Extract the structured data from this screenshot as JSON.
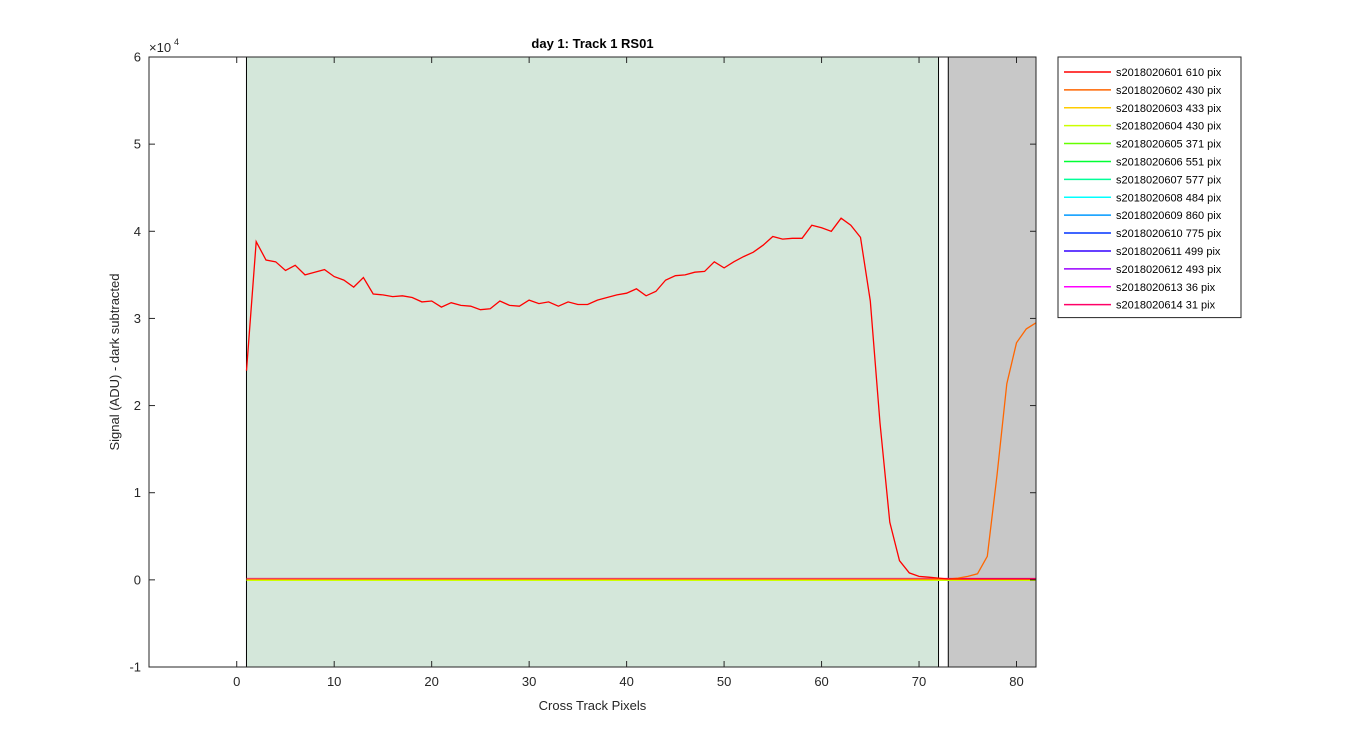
{
  "chart_data": {
    "type": "line",
    "title": "day 1: Track 1  RS01",
    "xlabel": "Cross Track Pixels",
    "ylabel": "Signal (ADU) - dark subtracted",
    "xlim": [
      -9,
      82
    ],
    "ylim": [
      -10000,
      60000
    ],
    "y_exponent_label": "×10",
    "y_exponent": "4",
    "xticks": [
      0,
      10,
      20,
      30,
      40,
      50,
      60,
      70,
      80
    ],
    "xtick_labels": [
      "0",
      "10",
      "20",
      "30",
      "40",
      "50",
      "60",
      "70",
      "80"
    ],
    "yticks": [
      -10000,
      0,
      10000,
      20000,
      30000,
      40000,
      50000,
      60000
    ],
    "ytick_labels": [
      "-1",
      "0",
      "1",
      "2",
      "3",
      "4",
      "5",
      "6"
    ],
    "grid": false,
    "legend_position": "outside-right-top",
    "regions": [
      {
        "x0": 1,
        "x1": 72,
        "color": "#d4e7da"
      },
      {
        "x0": 73,
        "x1": 82,
        "color": "#c8c8c8"
      }
    ],
    "vlines": [
      1,
      72,
      73
    ],
    "series": [
      {
        "name": "s2018020601 610 pix",
        "color": "#ff0000",
        "x": [
          1,
          2,
          3,
          4,
          5,
          6,
          7,
          8,
          9,
          10,
          11,
          12,
          13,
          14,
          15,
          16,
          17,
          18,
          19,
          20,
          21,
          22,
          23,
          24,
          25,
          26,
          27,
          28,
          29,
          30,
          31,
          32,
          33,
          34,
          35,
          36,
          37,
          38,
          39,
          40,
          41,
          42,
          43,
          44,
          45,
          46,
          47,
          48,
          49,
          50,
          51,
          52,
          53,
          54,
          55,
          56,
          57,
          58,
          59,
          60,
          61,
          62,
          63,
          64,
          65,
          66,
          67,
          68,
          69,
          70,
          71,
          72,
          73,
          74,
          75,
          76,
          77,
          78,
          79,
          80,
          81,
          82
        ],
        "y": [
          24000,
          38800,
          36700,
          36500,
          35500,
          36100,
          35000,
          35300,
          35600,
          34800,
          34400,
          33600,
          34700,
          32800,
          32700,
          32500,
          32600,
          32400,
          31900,
          32000,
          31300,
          31800,
          31500,
          31400,
          31000,
          31100,
          32000,
          31500,
          31400,
          32100,
          31700,
          31900,
          31400,
          31900,
          31600,
          31600,
          32100,
          32400,
          32700,
          32900,
          33400,
          32600,
          33100,
          34400,
          34900,
          35000,
          35300,
          35400,
          36500,
          35800,
          36500,
          37100,
          37600,
          38400,
          39400,
          39100,
          39200,
          39200,
          40700,
          40400,
          40000,
          41500,
          40700,
          39300,
          32000,
          18000,
          6600,
          2200,
          800,
          400,
          300,
          200,
          100,
          100,
          100,
          100,
          100,
          100,
          100,
          100,
          100,
          100
        ]
      },
      {
        "name": "s2018020602 430 pix",
        "color": "#ff6600",
        "x": [
          1,
          5,
          10,
          20,
          30,
          40,
          50,
          60,
          70,
          72,
          73,
          74,
          75,
          76,
          77,
          78,
          79,
          80,
          81,
          82
        ],
        "y": [
          100,
          100,
          100,
          100,
          100,
          100,
          100,
          100,
          100,
          100,
          100,
          200,
          400,
          700,
          2700,
          12000,
          22500,
          27200,
          28800,
          29500
        ]
      },
      {
        "name": "s2018020603 433 pix",
        "color": "#ffcc00",
        "x": [
          1,
          82
        ],
        "y": [
          50,
          50
        ]
      },
      {
        "name": "s2018020604 430 pix",
        "color": "#ccff00",
        "x": [
          1,
          82
        ],
        "y": [
          -50,
          -50
        ]
      },
      {
        "name": "s2018020605 371 pix",
        "color": "#66ff00",
        "x": [
          1,
          82
        ],
        "y": [
          30,
          30
        ]
      },
      {
        "name": "s2018020606 551 pix",
        "color": "#00ff33",
        "x": [
          1,
          82
        ],
        "y": [
          80,
          80
        ]
      },
      {
        "name": "s2018020607 577 pix",
        "color": "#00ff99",
        "x": [
          1,
          82
        ],
        "y": [
          20,
          20
        ]
      },
      {
        "name": "s2018020608 484 pix",
        "color": "#00ffff",
        "x": [
          1,
          82
        ],
        "y": [
          60,
          60
        ]
      },
      {
        "name": "s2018020609 860 pix",
        "color": "#0099ff",
        "x": [
          1,
          82
        ],
        "y": [
          40,
          40
        ]
      },
      {
        "name": "s2018020610 775 pix",
        "color": "#0033ff",
        "x": [
          1,
          82
        ],
        "y": [
          70,
          70
        ]
      },
      {
        "name": "s2018020611 499 pix",
        "color": "#3300ff",
        "x": [
          1,
          82
        ],
        "y": [
          90,
          90
        ]
      },
      {
        "name": "s2018020612 493 pix",
        "color": "#9900ff",
        "x": [
          1,
          82
        ],
        "y": [
          110,
          110
        ]
      },
      {
        "name": "s2018020613 36 pix",
        "color": "#ff00ff",
        "x": [
          1,
          82
        ],
        "y": [
          130,
          130
        ]
      },
      {
        "name": "s2018020614 31 pix",
        "color": "#ff0066",
        "x": [
          1,
          82
        ],
        "y": [
          150,
          150
        ]
      }
    ]
  }
}
